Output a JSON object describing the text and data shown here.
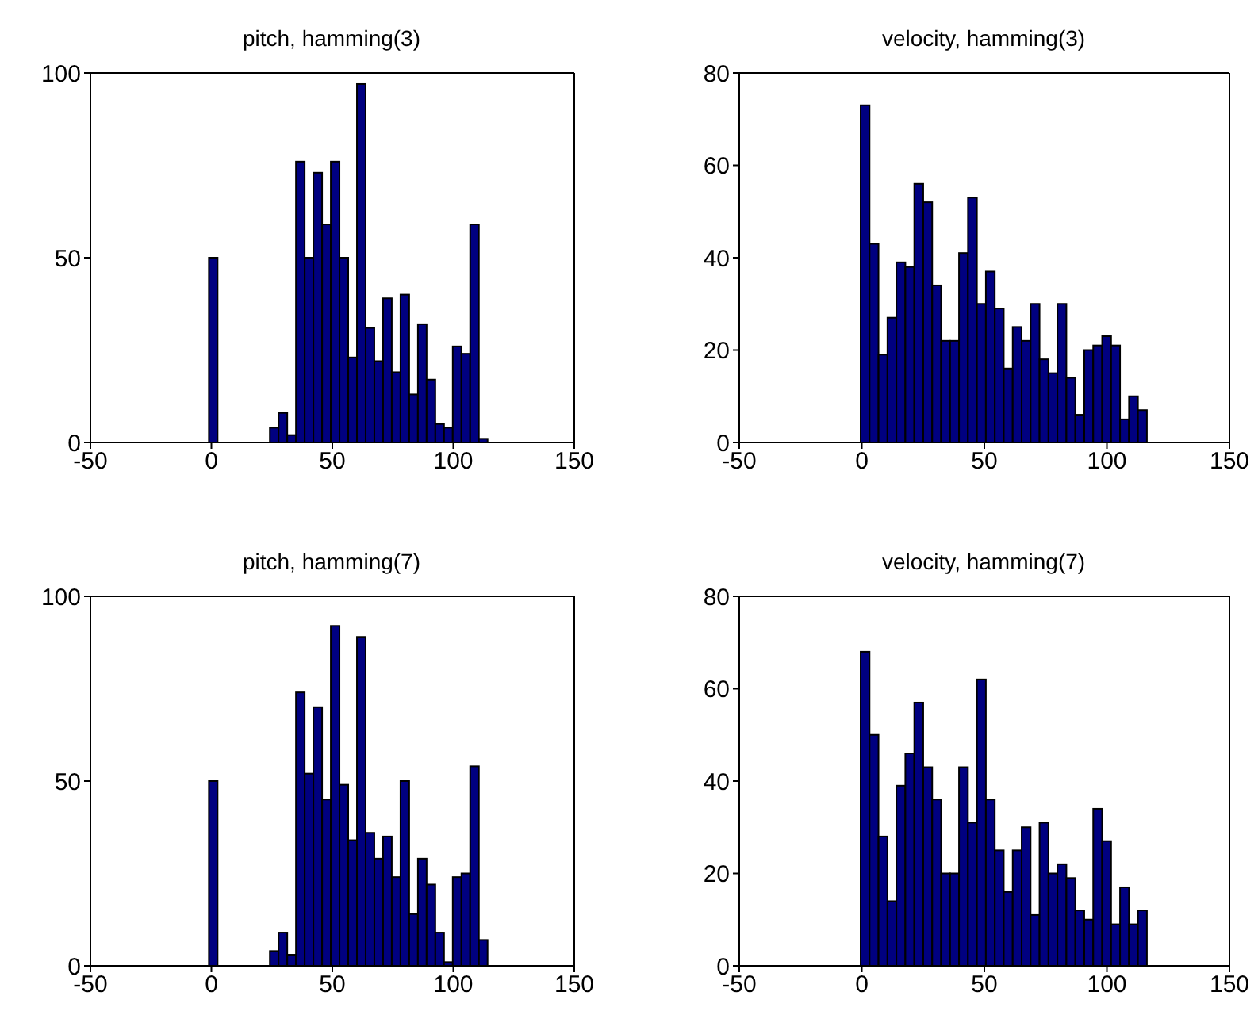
{
  "chart_data": [
    {
      "type": "histogram",
      "title": "pitch, hamming(3)",
      "color": "#000080",
      "xlim": [
        -50,
        150
      ],
      "xticks": [
        -50,
        0,
        50,
        100,
        150
      ],
      "ylim": [
        0,
        100
      ],
      "yticks": [
        0,
        50,
        100
      ],
      "bins": [
        -1.2,
        2.4,
        6,
        9.6,
        13.2,
        16.8,
        20.4,
        24,
        27.6,
        31.2,
        34.8,
        38.4,
        42,
        45.6,
        49.2,
        52.8,
        56.4,
        60,
        63.6,
        67.2,
        70.8,
        74.4,
        78,
        81.6,
        85.2,
        88.8,
        92.4,
        96,
        99.6,
        103.2,
        106.8,
        110.4,
        114
      ],
      "values": [
        50,
        0,
        0,
        0,
        0,
        0,
        0,
        4,
        8,
        2,
        76,
        50,
        73,
        59,
        76,
        50,
        23,
        97,
        31,
        22,
        39,
        19,
        40,
        13,
        32,
        17,
        5,
        4,
        26,
        24,
        59,
        1
      ]
    },
    {
      "type": "histogram",
      "title": "velocity, hamming(3)",
      "color": "#000080",
      "xlim": [
        -50,
        150
      ],
      "xticks": [
        -50,
        0,
        50,
        100,
        150
      ],
      "ylim": [
        0,
        80
      ],
      "yticks": [
        0,
        20,
        40,
        60,
        80
      ],
      "bins": [
        -0.6,
        3.05,
        6.7,
        10.35,
        14,
        17.65,
        21.3,
        24.95,
        28.6,
        32.25,
        35.9,
        39.55,
        43.2,
        46.85,
        50.5,
        54.15,
        57.8,
        61.45,
        65.1,
        68.75,
        72.4,
        76.05,
        79.7,
        83.35,
        87,
        90.65,
        94.3,
        97.95,
        101.6,
        105.25,
        108.9,
        112.55,
        116.2
      ],
      "values": [
        73,
        43,
        19,
        27,
        39,
        38,
        56,
        52,
        34,
        22,
        22,
        41,
        53,
        30,
        37,
        29,
        16,
        25,
        22,
        30,
        18,
        15,
        30,
        14,
        6,
        20,
        21,
        23,
        21,
        5,
        10,
        7
      ]
    },
    {
      "type": "histogram",
      "title": "pitch, hamming(7)",
      "color": "#000080",
      "xlim": [
        -50,
        150
      ],
      "xticks": [
        -50,
        0,
        50,
        100,
        150
      ],
      "ylim": [
        0,
        100
      ],
      "yticks": [
        0,
        50,
        100
      ],
      "bins": [
        -1.2,
        2.4,
        6,
        9.6,
        13.2,
        16.8,
        20.4,
        24,
        27.6,
        31.2,
        34.8,
        38.4,
        42,
        45.6,
        49.2,
        52.8,
        56.4,
        60,
        63.6,
        67.2,
        70.8,
        74.4,
        78,
        81.6,
        85.2,
        88.8,
        92.4,
        96,
        99.6,
        103.2,
        106.8,
        110.4,
        114
      ],
      "values": [
        50,
        0,
        0,
        0,
        0,
        0,
        0,
        4,
        9,
        3,
        74,
        52,
        70,
        45,
        92,
        49,
        34,
        89,
        36,
        29,
        35,
        24,
        50,
        14,
        29,
        22,
        9,
        1,
        24,
        25,
        54,
        7
      ]
    },
    {
      "type": "histogram",
      "title": "velocity, hamming(7)",
      "color": "#000080",
      "xlim": [
        -50,
        150
      ],
      "xticks": [
        -50,
        0,
        50,
        100,
        150
      ],
      "ylim": [
        0,
        80
      ],
      "yticks": [
        0,
        20,
        40,
        60,
        80
      ],
      "bins": [
        -0.6,
        3.05,
        6.7,
        10.35,
        14,
        17.65,
        21.3,
        24.95,
        28.6,
        32.25,
        35.9,
        39.55,
        43.2,
        46.85,
        50.5,
        54.15,
        57.8,
        61.45,
        65.1,
        68.75,
        72.4,
        76.05,
        79.7,
        83.35,
        87,
        90.65,
        94.3,
        97.95,
        101.6,
        105.25,
        108.9,
        112.55,
        116.2
      ],
      "values": [
        68,
        50,
        28,
        14,
        39,
        46,
        57,
        43,
        36,
        20,
        20,
        43,
        31,
        62,
        36,
        25,
        16,
        25,
        30,
        11,
        31,
        20,
        22,
        19,
        12,
        10,
        34,
        27,
        9,
        17,
        9,
        12
      ]
    }
  ]
}
